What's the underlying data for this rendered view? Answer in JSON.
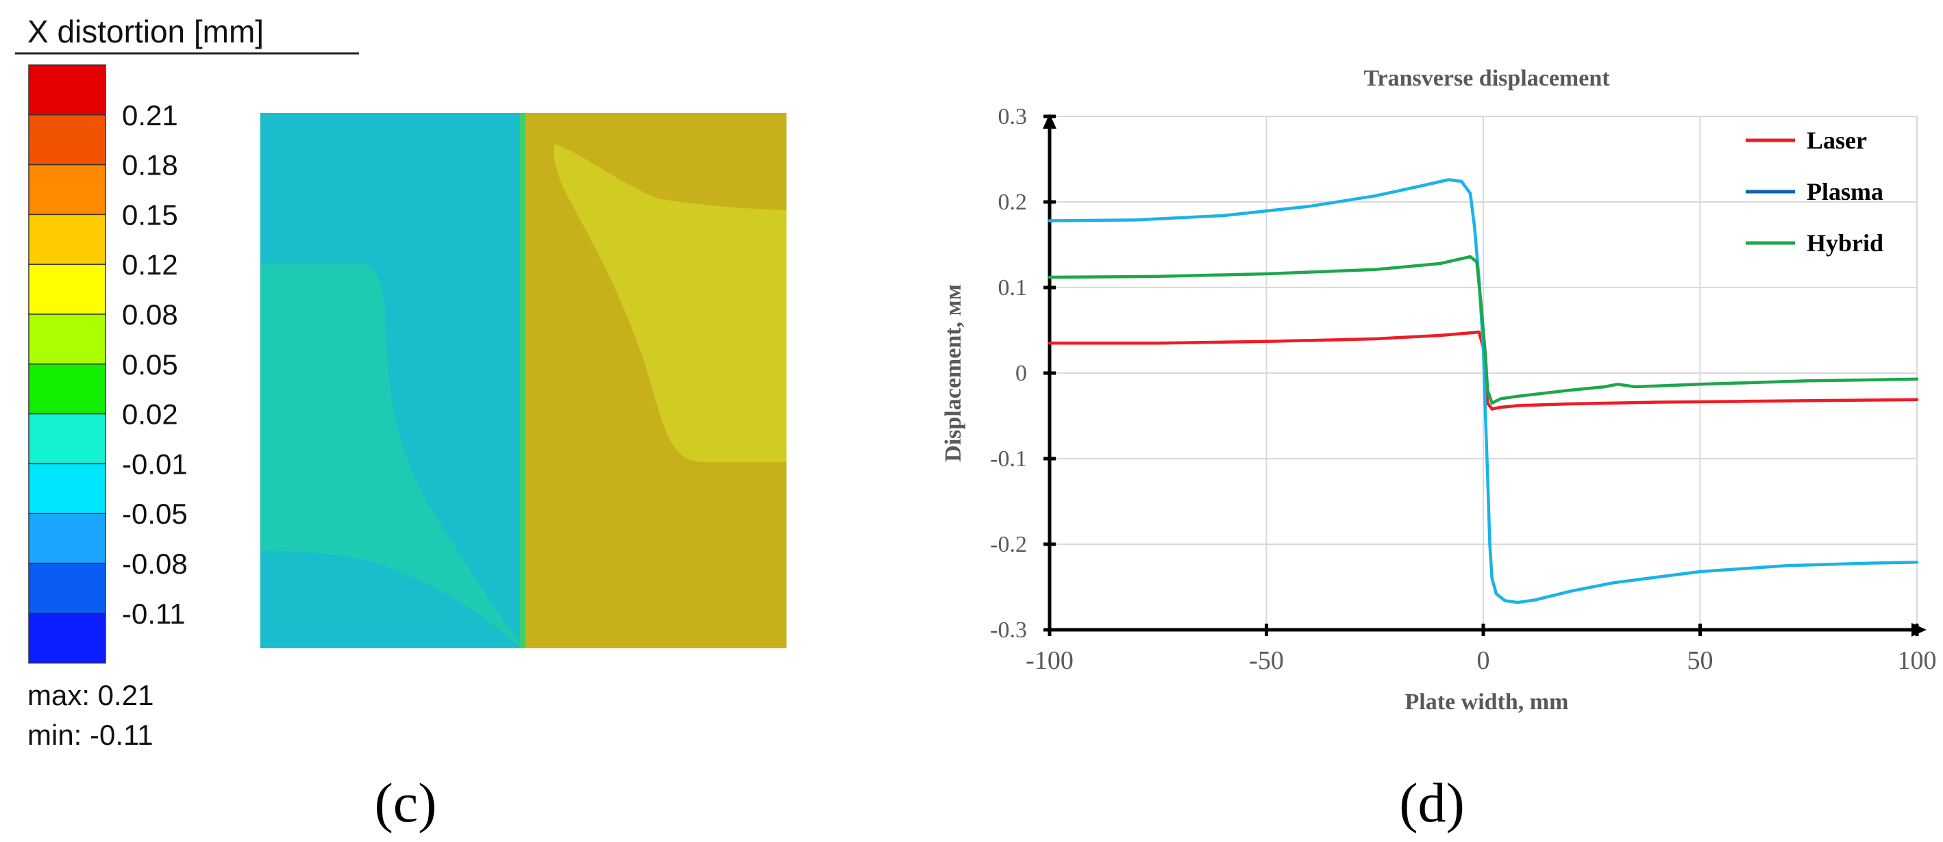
{
  "panel_c": {
    "colorbar": {
      "title": "X distortion [mm]",
      "bands": [
        "#e40000",
        "#f25300",
        "#ff8a00",
        "#ffcc00",
        "#ffff00",
        "#aaff00",
        "#12ee00",
        "#15f2d2",
        "#00e6ff",
        "#1aa6ff",
        "#0a5cf3",
        "#0c1dff"
      ],
      "tick_labels": [
        "0.21",
        "0.18",
        "0.15",
        "0.12",
        "0.08",
        "0.05",
        "0.02",
        "-0.01",
        "-0.05",
        "-0.08",
        "-0.11"
      ]
    },
    "max_label": "max:  0.21",
    "min_label": "min:  -0.11",
    "field_colors": {
      "left_base": "#1bbccb",
      "left_lobe": "#1ccbb2",
      "right_base": "#c7b01b",
      "right_lobe": "#d0cc22",
      "weld_line": "#3dd16a"
    },
    "label": "(c)"
  },
  "chart_data": {
    "type": "line",
    "title": "Transverse displacement",
    "xlabel": "Plate width, mm",
    "ylabel": "Displacement, мм",
    "xlim": [
      -100,
      100
    ],
    "ylim": [
      -0.3,
      0.3
    ],
    "xticks": [
      -100,
      -50,
      0,
      50,
      100
    ],
    "yticks": [
      0.3,
      0.2,
      0.1,
      0,
      -0.1,
      -0.2,
      -0.3
    ],
    "ytick_labels": [
      "0.3",
      "0.2",
      "0.1",
      "0",
      "-0.1",
      "-0.2",
      "-0.3"
    ],
    "xtick_labels": [
      "-100",
      "-50",
      "0",
      "50",
      "100"
    ],
    "grid": true,
    "legend_position": "top-right",
    "series": [
      {
        "name": "Laser",
        "color": "#ee1c25",
        "x": [
          -100,
          -75,
          -50,
          -25,
          -10,
          -3,
          -1,
          0,
          0.5,
          1,
          2,
          4,
          8,
          20,
          40,
          60,
          80,
          100
        ],
        "y": [
          0.035,
          0.035,
          0.037,
          0.04,
          0.044,
          0.047,
          0.048,
          0.03,
          -0.01,
          -0.035,
          -0.042,
          -0.04,
          -0.038,
          -0.036,
          -0.034,
          -0.033,
          -0.032,
          -0.031
        ]
      },
      {
        "name": "Plasma",
        "color": "#1ab3e8",
        "legend_color": "#0e62b8",
        "x": [
          -100,
          -80,
          -60,
          -40,
          -25,
          -15,
          -8,
          -5,
          -3,
          -2,
          -1,
          0,
          0.5,
          1,
          1.5,
          2,
          3,
          5,
          8,
          12,
          20,
          30,
          50,
          70,
          90,
          100
        ],
        "y": [
          0.178,
          0.179,
          0.184,
          0.195,
          0.207,
          0.218,
          0.226,
          0.224,
          0.21,
          0.17,
          0.11,
          0.03,
          -0.05,
          -0.12,
          -0.2,
          -0.24,
          -0.258,
          -0.266,
          -0.268,
          -0.265,
          -0.255,
          -0.245,
          -0.232,
          -0.225,
          -0.222,
          -0.221
        ]
      },
      {
        "name": "Hybrid",
        "color": "#1ea64b",
        "x": [
          -100,
          -75,
          -50,
          -25,
          -10,
          -3,
          -1.5,
          -0.5,
          0,
          0.5,
          1,
          2,
          4,
          8,
          20,
          28,
          31,
          35,
          50,
          75,
          100
        ],
        "y": [
          0.112,
          0.113,
          0.116,
          0.121,
          0.128,
          0.136,
          0.13,
          0.08,
          0.05,
          0.02,
          -0.02,
          -0.035,
          -0.03,
          -0.027,
          -0.02,
          -0.016,
          -0.013,
          -0.016,
          -0.013,
          -0.009,
          -0.007
        ]
      }
    ]
  },
  "panel_d": {
    "label": "(d)"
  }
}
